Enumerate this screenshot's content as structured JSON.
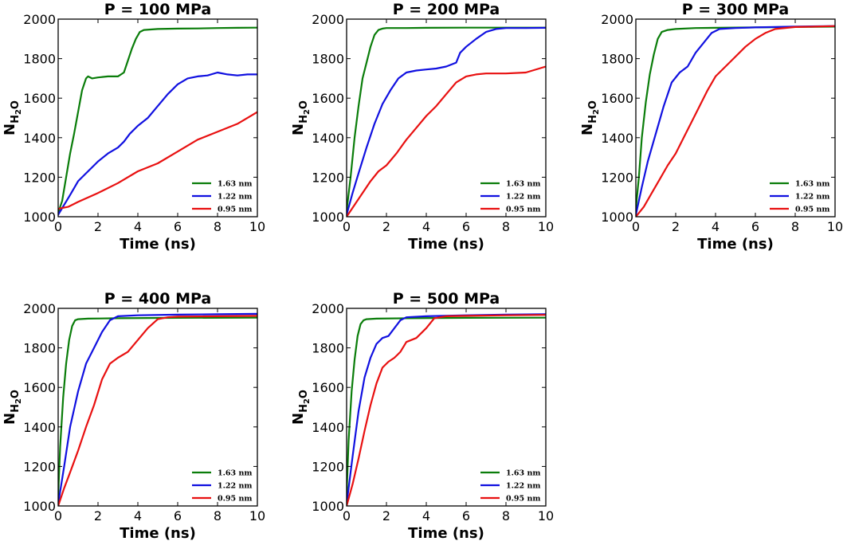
{
  "chart_data": [
    {
      "type": "line",
      "title": "P = 100 MPa",
      "xlabel": "Time (ns)",
      "ylabel": "N_H2O",
      "xlim": [
        0,
        10
      ],
      "ylim": [
        1000,
        2000
      ],
      "xticks": [
        0,
        2,
        4,
        6,
        8,
        10
      ],
      "yticks": [
        1000,
        1200,
        1400,
        1600,
        1800,
        2000
      ],
      "legend_position": "lower-right",
      "series": [
        {
          "name": "1.63 nm",
          "color": "#0a7d0a",
          "x": [
            0,
            0.2,
            0.4,
            0.6,
            0.8,
            1.0,
            1.2,
            1.4,
            1.5,
            1.7,
            2.0,
            2.5,
            3.0,
            3.3,
            3.5,
            3.7,
            3.9,
            4.1,
            4.3,
            5.0,
            6.0,
            7.0,
            8.0,
            9.0,
            10.0
          ],
          "y": [
            1020,
            1080,
            1200,
            1320,
            1420,
            1530,
            1640,
            1700,
            1710,
            1700,
            1705,
            1710,
            1710,
            1730,
            1790,
            1850,
            1900,
            1935,
            1945,
            1950,
            1952,
            1953,
            1955,
            1956,
            1957
          ]
        },
        {
          "name": "1.22 nm",
          "color": "#1010e0",
          "x": [
            0,
            0.3,
            0.6,
            1.0,
            1.5,
            2.0,
            2.5,
            3.0,
            3.3,
            3.6,
            4.0,
            4.5,
            5.0,
            5.5,
            6.0,
            6.5,
            7.0,
            7.5,
            8.0,
            8.5,
            9.0,
            9.5,
            10.0
          ],
          "y": [
            1010,
            1060,
            1110,
            1180,
            1230,
            1280,
            1320,
            1350,
            1380,
            1420,
            1460,
            1500,
            1560,
            1620,
            1670,
            1700,
            1710,
            1715,
            1730,
            1720,
            1715,
            1720,
            1720
          ]
        },
        {
          "name": "0.95 nm",
          "color": "#e81010",
          "x": [
            0,
            0.5,
            1.0,
            2.0,
            3.0,
            4.0,
            5.0,
            6.0,
            7.0,
            8.0,
            9.0,
            10.0
          ],
          "y": [
            1040,
            1050,
            1075,
            1120,
            1170,
            1230,
            1270,
            1330,
            1390,
            1430,
            1470,
            1530
          ]
        }
      ]
    },
    {
      "type": "line",
      "title": "P = 200 MPa",
      "xlabel": "Time (ns)",
      "ylabel": "N_H2O",
      "xlim": [
        0,
        10
      ],
      "ylim": [
        1000,
        2000
      ],
      "xticks": [
        0,
        2,
        4,
        6,
        8,
        10
      ],
      "yticks": [
        1000,
        1200,
        1400,
        1600,
        1800,
        2000
      ],
      "legend_position": "lower-right",
      "series": [
        {
          "name": "1.63 nm",
          "color": "#0a7d0a",
          "x": [
            0,
            0.2,
            0.4,
            0.6,
            0.8,
            1.0,
            1.2,
            1.4,
            1.6,
            1.8,
            2.0,
            3.0,
            4.0,
            6.0,
            8.0,
            10.0
          ],
          "y": [
            1030,
            1200,
            1400,
            1560,
            1700,
            1780,
            1860,
            1920,
            1945,
            1952,
            1955,
            1955,
            1956,
            1957,
            1957,
            1957
          ]
        },
        {
          "name": "1.22 nm",
          "color": "#1010e0",
          "x": [
            0,
            0.3,
            0.6,
            1.0,
            1.4,
            1.8,
            2.2,
            2.6,
            3.0,
            3.5,
            4.0,
            4.5,
            5.0,
            5.5,
            5.7,
            6.0,
            6.5,
            7.0,
            7.5,
            8.0,
            9.0,
            10.0
          ],
          "y": [
            1010,
            1120,
            1220,
            1350,
            1470,
            1570,
            1640,
            1700,
            1730,
            1740,
            1745,
            1750,
            1760,
            1780,
            1830,
            1860,
            1900,
            1935,
            1950,
            1955,
            1955,
            1956
          ]
        },
        {
          "name": "0.95 nm",
          "color": "#e81010",
          "x": [
            0,
            0.4,
            0.8,
            1.2,
            1.6,
            2.0,
            2.5,
            3.0,
            3.5,
            4.0,
            4.5,
            5.0,
            5.5,
            6.0,
            6.5,
            7.0,
            8.0,
            9.0,
            10.0
          ],
          "y": [
            1000,
            1060,
            1120,
            1180,
            1230,
            1260,
            1320,
            1390,
            1450,
            1510,
            1560,
            1620,
            1680,
            1710,
            1720,
            1725,
            1725,
            1730,
            1760
          ]
        }
      ]
    },
    {
      "type": "line",
      "title": "P = 300 MPa",
      "xlabel": "Time (ns)",
      "ylabel": "N_H2O",
      "xlim": [
        0,
        10
      ],
      "ylim": [
        1000,
        2000
      ],
      "xticks": [
        0,
        2,
        4,
        6,
        8,
        10
      ],
      "yticks": [
        1000,
        1200,
        1400,
        1600,
        1800,
        2000
      ],
      "legend_position": "lower-right",
      "series": [
        {
          "name": "1.63 nm",
          "color": "#0a7d0a",
          "x": [
            0,
            0.15,
            0.3,
            0.5,
            0.7,
            0.9,
            1.1,
            1.3,
            1.6,
            2.0,
            3.0,
            4.0,
            6.0,
            8.0,
            10.0
          ],
          "y": [
            1040,
            1200,
            1400,
            1580,
            1720,
            1820,
            1900,
            1935,
            1945,
            1950,
            1955,
            1956,
            1958,
            1960,
            1962
          ]
        },
        {
          "name": "1.22 nm",
          "color": "#1010e0",
          "x": [
            0,
            0.3,
            0.6,
            1.0,
            1.4,
            1.8,
            2.2,
            2.6,
            3.0,
            3.4,
            3.8,
            4.2,
            5.0,
            6.0,
            8.0,
            10.0
          ],
          "y": [
            1010,
            1150,
            1280,
            1420,
            1560,
            1680,
            1730,
            1760,
            1830,
            1880,
            1930,
            1950,
            1955,
            1958,
            1962,
            1965
          ]
        },
        {
          "name": "0.95 nm",
          "color": "#e81010",
          "x": [
            0,
            0.4,
            0.8,
            1.2,
            1.6,
            2.0,
            2.4,
            2.8,
            3.2,
            3.6,
            4.0,
            4.5,
            5.0,
            5.5,
            6.0,
            6.5,
            7.0,
            8.0,
            9.0,
            10.0
          ],
          "y": [
            1000,
            1050,
            1120,
            1190,
            1260,
            1320,
            1400,
            1480,
            1560,
            1640,
            1710,
            1760,
            1810,
            1860,
            1900,
            1930,
            1950,
            1960,
            1962,
            1965
          ]
        }
      ]
    },
    {
      "type": "line",
      "title": "P = 400 MPa",
      "xlabel": "Time (ns)",
      "ylabel": "N_H2O",
      "xlim": [
        0,
        10
      ],
      "ylim": [
        1000,
        2000
      ],
      "xticks": [
        0,
        2,
        4,
        6,
        8,
        10
      ],
      "yticks": [
        1000,
        1200,
        1400,
        1600,
        1800,
        2000
      ],
      "legend_position": "lower-right",
      "series": [
        {
          "name": "1.63 nm",
          "color": "#0a7d0a",
          "x": [
            0,
            0.1,
            0.25,
            0.4,
            0.55,
            0.7,
            0.85,
            1.0,
            1.5,
            3.0,
            6.0,
            10.0
          ],
          "y": [
            1050,
            1300,
            1550,
            1720,
            1840,
            1910,
            1940,
            1945,
            1948,
            1950,
            1952,
            1953
          ]
        },
        {
          "name": "1.22 nm",
          "color": "#1010e0",
          "x": [
            0,
            0.3,
            0.6,
            1.0,
            1.4,
            1.8,
            2.2,
            2.6,
            3.0,
            4.0,
            6.0,
            8.0,
            10.0
          ],
          "y": [
            1010,
            1200,
            1400,
            1580,
            1720,
            1800,
            1880,
            1940,
            1960,
            1965,
            1968,
            1970,
            1972
          ]
        },
        {
          "name": "0.95 nm",
          "color": "#e81010",
          "x": [
            0,
            0.3,
            0.6,
            1.0,
            1.4,
            1.8,
            2.2,
            2.6,
            3.0,
            3.5,
            4.0,
            4.5,
            5.0,
            5.5,
            6.0,
            8.0,
            10.0
          ],
          "y": [
            1000,
            1090,
            1170,
            1280,
            1400,
            1510,
            1640,
            1720,
            1750,
            1780,
            1840,
            1900,
            1945,
            1955,
            1958,
            1960,
            1962
          ]
        }
      ]
    },
    {
      "type": "line",
      "title": "P = 500 MPa",
      "xlabel": "Time (ns)",
      "ylabel": "N_H2O",
      "xlim": [
        0,
        10
      ],
      "ylim": [
        1000,
        2000
      ],
      "xticks": [
        0,
        2,
        4,
        6,
        8,
        10
      ],
      "yticks": [
        1000,
        1200,
        1400,
        1600,
        1800,
        2000
      ],
      "legend_position": "lower-right",
      "series": [
        {
          "name": "1.63 nm",
          "color": "#0a7d0a",
          "x": [
            0,
            0.1,
            0.25,
            0.4,
            0.55,
            0.7,
            0.85,
            1.0,
            1.5,
            3.0,
            6.0,
            10.0
          ],
          "y": [
            1060,
            1330,
            1580,
            1740,
            1860,
            1920,
            1940,
            1945,
            1948,
            1950,
            1952,
            1953
          ]
        },
        {
          "name": "1.22 nm",
          "color": "#1010e0",
          "x": [
            0,
            0.3,
            0.6,
            0.9,
            1.2,
            1.5,
            1.8,
            2.1,
            2.4,
            2.7,
            3.0,
            4.0,
            6.0,
            8.0,
            10.0
          ],
          "y": [
            1010,
            1250,
            1480,
            1650,
            1750,
            1820,
            1850,
            1860,
            1900,
            1940,
            1955,
            1960,
            1965,
            1968,
            1970
          ]
        },
        {
          "name": "0.95 nm",
          "color": "#e81010",
          "x": [
            0,
            0.3,
            0.6,
            0.9,
            1.2,
            1.5,
            1.8,
            2.1,
            2.4,
            2.7,
            3.0,
            3.5,
            4.0,
            4.4,
            5.0,
            6.0,
            8.0,
            10.0
          ],
          "y": [
            1000,
            1110,
            1240,
            1380,
            1510,
            1620,
            1700,
            1730,
            1750,
            1780,
            1830,
            1850,
            1900,
            1950,
            1960,
            1962,
            1965,
            1967
          ]
        }
      ]
    }
  ]
}
